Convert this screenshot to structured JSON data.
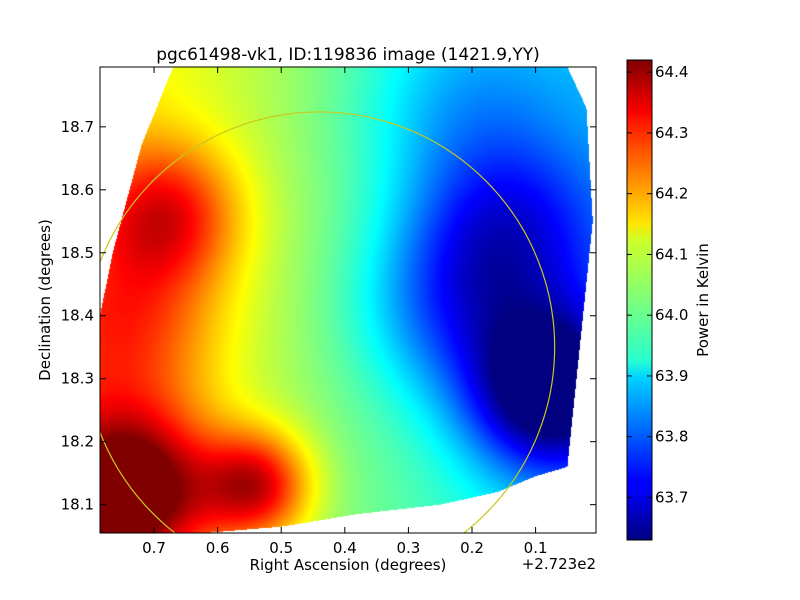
{
  "chart_data": {
    "type": "heatmap",
    "title": "pgc61498-vk1, ID:119836 image (1421.9,YY)",
    "xlabel": "Right Ascension (degrees)",
    "ylabel": "Declination (degrees)",
    "x_offset_label": "+2.723e2",
    "xlim": [
      0.785,
      0.005
    ],
    "ylim": [
      18.055,
      18.795
    ],
    "x_ticks": [
      0.7,
      0.6,
      0.5,
      0.4,
      0.3,
      0.2,
      0.1
    ],
    "x_tick_labels": [
      "0.7",
      "0.6",
      "0.5",
      "0.4",
      "0.3",
      "0.2",
      "0.1"
    ],
    "y_ticks": [
      18.1,
      18.2,
      18.3,
      18.4,
      18.5,
      18.6,
      18.7
    ],
    "y_tick_labels": [
      "18.1",
      "18.2",
      "18.3",
      "18.4",
      "18.5",
      "18.6",
      "18.7"
    ],
    "colorbar": {
      "label": "Power in Kelvin",
      "range": [
        63.63,
        64.42
      ],
      "ticks": [
        63.7,
        63.8,
        63.9,
        64.0,
        64.1,
        64.2,
        64.3,
        64.4
      ],
      "tick_labels": [
        "63.7",
        "63.8",
        "63.9",
        "64.0",
        "64.1",
        "64.2",
        "64.3",
        "64.4"
      ],
      "colormap": "jet"
    },
    "circle": {
      "center_ra": 0.44,
      "center_dec": 18.35,
      "radius_deg": 0.37,
      "color": "#c8c81e"
    },
    "field": {
      "baseline": 64.02,
      "ra_gradient": [
        0.05,
        0.72,
        0.22
      ],
      "components": [
        {
          "ra": 0.74,
          "dec": 18.12,
          "amp": 0.4,
          "sigma": 0.09
        },
        {
          "ra": 0.54,
          "dec": 18.13,
          "amp": 0.28,
          "sigma": 0.06
        },
        {
          "ra": 0.68,
          "dec": 18.56,
          "amp": 0.22,
          "sigma": 0.08
        },
        {
          "ra": 0.74,
          "dec": 18.38,
          "amp": 0.15,
          "sigma": 0.1
        },
        {
          "ra": 0.08,
          "dec": 18.28,
          "amp": -0.38,
          "sigma": 0.09
        },
        {
          "ra": 0.15,
          "dec": 18.52,
          "amp": -0.22,
          "sigma": 0.11
        },
        {
          "ra": 0.25,
          "dec": 18.4,
          "amp": -0.12,
          "sigma": 0.1
        },
        {
          "ra": 0.22,
          "dec": 18.74,
          "amp": -0.1,
          "sigma": 0.12
        }
      ],
      "valid_region": [
        [
          0.67,
          18.795
        ],
        [
          0.05,
          18.795
        ],
        [
          0.02,
          18.73
        ],
        [
          0.01,
          18.55
        ],
        [
          0.05,
          18.16
        ],
        [
          0.1,
          18.145
        ],
        [
          0.16,
          18.12
        ],
        [
          0.25,
          18.1
        ],
        [
          0.38,
          18.085
        ],
        [
          0.5,
          18.065
        ],
        [
          0.62,
          18.055
        ],
        [
          0.785,
          18.055
        ],
        [
          0.785,
          18.4
        ],
        [
          0.765,
          18.5
        ],
        [
          0.72,
          18.67
        ]
      ]
    }
  }
}
